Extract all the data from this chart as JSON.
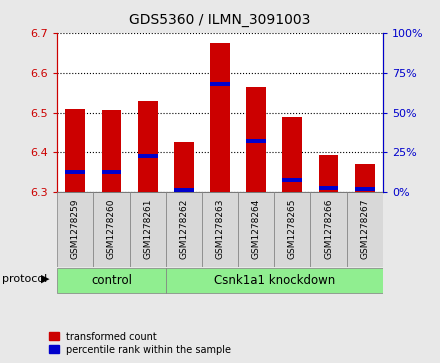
{
  "title": "GDS5360 / ILMN_3091003",
  "samples": [
    "GSM1278259",
    "GSM1278260",
    "GSM1278261",
    "GSM1278262",
    "GSM1278263",
    "GSM1278264",
    "GSM1278265",
    "GSM1278266",
    "GSM1278267"
  ],
  "bar_tops": [
    6.508,
    6.506,
    6.53,
    6.425,
    6.673,
    6.565,
    6.49,
    6.393,
    6.37
  ],
  "bar_bottom": 6.3,
  "percentile_values": [
    13.0,
    12.5,
    22.5,
    1.5,
    68.0,
    32.0,
    8.0,
    2.5,
    2.0
  ],
  "ylim": [
    6.3,
    6.7
  ],
  "right_ylim": [
    0,
    100
  ],
  "yticks": [
    6.3,
    6.4,
    6.5,
    6.6,
    6.7
  ],
  "right_yticks": [
    0,
    25,
    50,
    75,
    100
  ],
  "bar_color": "#cc0000",
  "blue_color": "#0000cc",
  "control_samples": 3,
  "control_label": "control",
  "knockdown_label": "Csnk1a1 knockdown",
  "protocol_label": "protocol",
  "legend_red": "transformed count",
  "legend_blue": "percentile rank within the sample",
  "background_color": "#e8e8e8",
  "plot_bg": "#ffffff",
  "protocol_bg": "#90ee90",
  "bar_width": 0.55,
  "blue_bar_height": 0.01
}
